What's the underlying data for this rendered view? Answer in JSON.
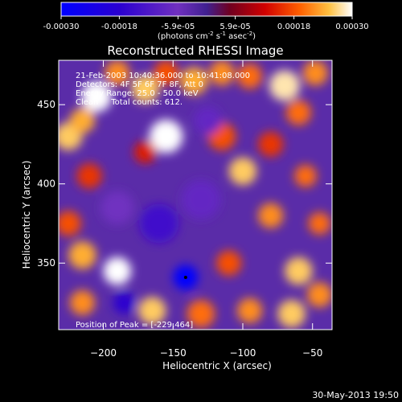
{
  "chart_data": {
    "type": "heatmap",
    "title": "Reconstructed RHESSI Image",
    "xlabel": "Heliocentric X (arcsec)",
    "ylabel": "Heliocentric Y (arcsec)",
    "xlim": [
      -232,
      -36
    ],
    "ylim": [
      308,
      478
    ],
    "x_ticks": [
      -200,
      -150,
      -100,
      -50
    ],
    "y_ticks": [
      350,
      400,
      450
    ],
    "colorbar": {
      "range": [
        -0.0003,
        0.0003
      ],
      "tick_values": [
        -0.0003,
        -0.00018,
        -5.9e-05,
        5.9e-05,
        0.00018,
        0.0003
      ],
      "tick_labels": [
        "-0.00030",
        "-0.00018",
        "-5.9e-05",
        "5.9e-05",
        "0.00018",
        "0.00030"
      ],
      "unit_text": "(photons cm",
      "unit_exp1": "-2",
      "unit_mid": " s",
      "unit_exp2": "-1",
      "unit_mid2": " asec",
      "unit_exp3": "-2",
      "unit_end": ")"
    },
    "annotations": [
      "21-Feb-2003 10:40:36.000 to 10:41:08.000",
      "Detectors: 4F 5F 6F 7F 8F, Att 0",
      "Energy Range: 25.0 - 50.0 keV",
      "Clean     Total counts: 612."
    ],
    "peak_label": "Position of Peak = [-229,464]",
    "peak_position": [
      -229,
      464
    ],
    "min_marker": [
      -141,
      341
    ],
    "blobs": [
      {
        "x": -205,
        "y": 455,
        "v": 0.0003,
        "r": 11
      },
      {
        "x": -190,
        "y": 470,
        "v": 0.00022,
        "r": 9
      },
      {
        "x": -170,
        "y": 460,
        "v": 0.00026,
        "r": 10
      },
      {
        "x": -155,
        "y": 470,
        "v": 0.00018,
        "r": 9
      },
      {
        "x": -135,
        "y": 465,
        "v": 0.00024,
        "r": 10
      },
      {
        "x": -115,
        "y": 470,
        "v": 0.00022,
        "r": 9
      },
      {
        "x": -95,
        "y": 468,
        "v": 0.0002,
        "r": 9
      },
      {
        "x": -70,
        "y": 462,
        "v": 0.00028,
        "r": 11
      },
      {
        "x": -48,
        "y": 470,
        "v": 0.00022,
        "r": 9
      },
      {
        "x": -60,
        "y": 445,
        "v": 0.0002,
        "r": 9
      },
      {
        "x": -225,
        "y": 430,
        "v": 0.00026,
        "r": 10
      },
      {
        "x": -215,
        "y": 440,
        "v": 0.00024,
        "r": 9
      },
      {
        "x": -155,
        "y": 430,
        "v": 0.0003,
        "r": 12
      },
      {
        "x": -170,
        "y": 420,
        "v": 0.00014,
        "r": 8
      },
      {
        "x": -115,
        "y": 430,
        "v": 0.00018,
        "r": 10
      },
      {
        "x": -80,
        "y": 425,
        "v": 0.00016,
        "r": 9
      },
      {
        "x": -210,
        "y": 405,
        "v": 0.00016,
        "r": 9
      },
      {
        "x": -100,
        "y": 408,
        "v": 0.00026,
        "r": 10
      },
      {
        "x": -55,
        "y": 405,
        "v": 0.0002,
        "r": 8
      },
      {
        "x": -225,
        "y": 375,
        "v": 0.00018,
        "r": 9
      },
      {
        "x": -80,
        "y": 380,
        "v": 0.00022,
        "r": 9
      },
      {
        "x": -45,
        "y": 375,
        "v": 0.0002,
        "r": 8
      },
      {
        "x": -215,
        "y": 355,
        "v": 0.00024,
        "r": 10
      },
      {
        "x": -190,
        "y": 345,
        "v": 0.0003,
        "r": 10
      },
      {
        "x": -110,
        "y": 350,
        "v": 0.00018,
        "r": 9
      },
      {
        "x": -60,
        "y": 345,
        "v": 0.00026,
        "r": 10
      },
      {
        "x": -45,
        "y": 330,
        "v": 0.00022,
        "r": 9
      },
      {
        "x": -215,
        "y": 325,
        "v": 0.00022,
        "r": 9
      },
      {
        "x": -165,
        "y": 320,
        "v": 0.00026,
        "r": 10
      },
      {
        "x": -130,
        "y": 318,
        "v": 0.0002,
        "r": 10
      },
      {
        "x": -95,
        "y": 320,
        "v": 0.00022,
        "r": 9
      },
      {
        "x": -65,
        "y": 318,
        "v": 0.00026,
        "r": 10
      },
      {
        "x": -190,
        "y": 385,
        "v": -6e-05,
        "r": 12
      },
      {
        "x": -160,
        "y": 375,
        "v": -0.00014,
        "r": 14
      },
      {
        "x": -130,
        "y": 390,
        "v": -8e-05,
        "r": 14
      },
      {
        "x": -141,
        "y": 341,
        "v": -0.0003,
        "r": 9
      },
      {
        "x": -185,
        "y": 325,
        "v": -0.00018,
        "r": 8
      },
      {
        "x": -125,
        "y": 440,
        "v": -8e-05,
        "r": 10
      }
    ]
  },
  "footer": {
    "timestamp": "30-May-2013 19:50"
  }
}
